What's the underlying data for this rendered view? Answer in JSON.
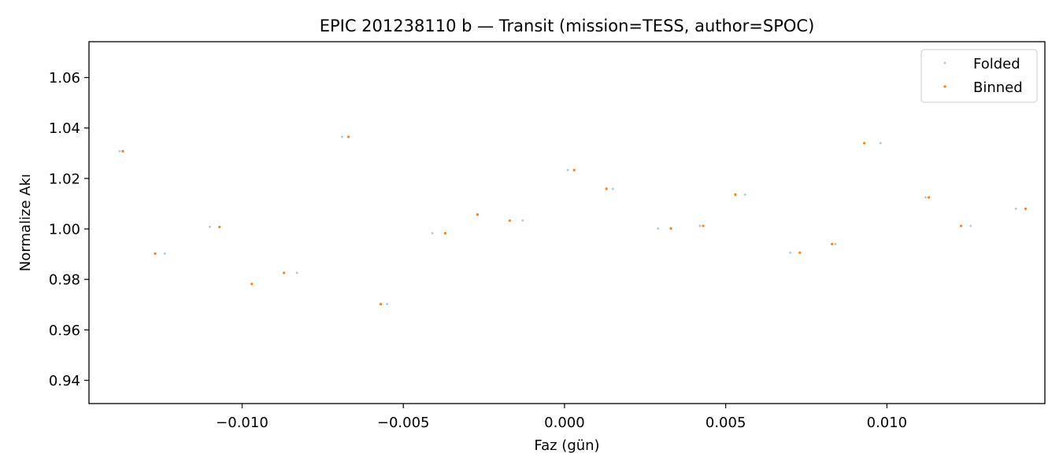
{
  "chart_data": {
    "type": "scatter",
    "title": "EPIC 201238110 b — Transit (mission=TESS, author=SPOC)",
    "xlabel": "Faz (gün)",
    "ylabel": "Normalize Akı",
    "xlim": [
      -0.01475,
      0.0149
    ],
    "ylim": [
      0.9308,
      1.0742
    ],
    "xticks": [
      -0.01,
      -0.005,
      0.0,
      0.005,
      0.01
    ],
    "xtick_labels": [
      "−0.010",
      "−0.005",
      "0.000",
      "0.005",
      "0.010"
    ],
    "yticks": [
      0.94,
      0.96,
      0.98,
      1.0,
      1.02,
      1.04,
      1.06
    ],
    "ytick_labels": [
      "0.94",
      "0.96",
      "0.98",
      "1.00",
      "1.02",
      "1.04",
      "1.06"
    ],
    "grid": false,
    "legend_position": "top-right",
    "series": [
      {
        "name": "Folded",
        "color": "#1f77b4",
        "alpha": 0.4,
        "x": [
          -0.0138,
          -0.0124,
          -0.011,
          -0.0097,
          -0.0083,
          -0.0069,
          -0.0055,
          -0.0041,
          -0.0027,
          -0.0013,
          0.0001,
          0.0015,
          0.0029,
          0.0042,
          0.0056,
          0.007,
          0.0084,
          0.0098,
          0.0112,
          0.0126,
          0.014
        ],
        "y": [
          1.0308,
          0.9902,
          1.0008,
          0.9782,
          0.9826,
          1.0365,
          0.9702,
          0.9983,
          1.0057,
          1.0033,
          1.0233,
          1.0159,
          1.0002,
          1.0012,
          1.0136,
          0.9906,
          0.994,
          1.034,
          1.0125,
          1.0012,
          1.008
        ]
      },
      {
        "name": "Binned",
        "color": "#ff7f0e",
        "alpha": 1.0,
        "x": [
          -0.0137,
          -0.0127,
          -0.0107,
          -0.0097,
          -0.0087,
          -0.0067,
          -0.0057,
          -0.0037,
          -0.0027,
          -0.0017,
          0.0003,
          0.0013,
          0.0033,
          0.0043,
          0.0053,
          0.0073,
          0.0083,
          0.0093,
          0.0113,
          0.0123,
          0.0143
        ],
        "y": [
          1.0308,
          0.9902,
          1.0008,
          0.9782,
          0.9826,
          1.0365,
          0.9702,
          0.9983,
          1.0057,
          1.0033,
          1.0233,
          1.0159,
          1.0002,
          1.0012,
          1.0136,
          0.9906,
          0.994,
          1.034,
          1.0125,
          1.0012,
          1.008
        ]
      }
    ]
  }
}
